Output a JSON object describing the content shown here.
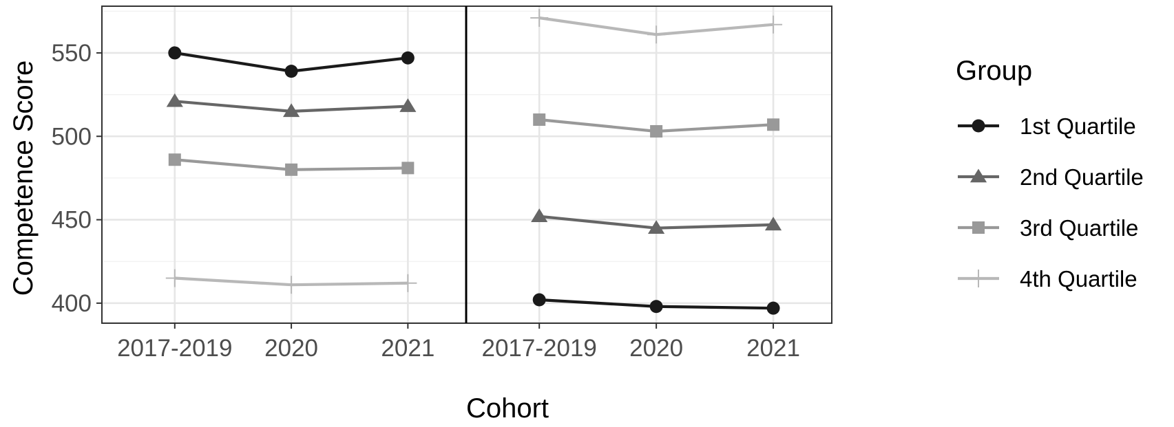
{
  "chart_data": {
    "type": "line",
    "xlabel": "Cohort",
    "ylabel": "Competence Score",
    "ylim": [
      388,
      578
    ],
    "yticks": [
      400,
      450,
      500,
      550
    ],
    "categories": [
      "2017-2019",
      "2020",
      "2021"
    ],
    "grid": true,
    "legend_placement": "right",
    "legend_title": "Group",
    "colors": {
      "1st Quartile": "#1a1a1a",
      "2nd Quartile": "#666666",
      "3rd Quartile": "#999999",
      "4th Quartile": "#b8b8b8"
    },
    "markers": {
      "1st Quartile": "circle",
      "2nd Quartile": "triangle",
      "3rd Quartile": "square",
      "4th Quartile": "plus"
    },
    "panels": [
      {
        "series": [
          {
            "name": "1st Quartile",
            "values": [
              550,
              539,
              547
            ]
          },
          {
            "name": "2nd Quartile",
            "values": [
              521,
              515,
              518
            ]
          },
          {
            "name": "3rd Quartile",
            "values": [
              486,
              480,
              481
            ]
          },
          {
            "name": "4th Quartile",
            "values": [
              415,
              411,
              412
            ]
          }
        ]
      },
      {
        "series": [
          {
            "name": "1st Quartile",
            "values": [
              402,
              398,
              397
            ]
          },
          {
            "name": "2nd Quartile",
            "values": [
              452,
              445,
              447
            ]
          },
          {
            "name": "3rd Quartile",
            "values": [
              510,
              503,
              507
            ]
          },
          {
            "name": "4th Quartile",
            "values": [
              571,
              561,
              567
            ]
          }
        ]
      }
    ]
  }
}
